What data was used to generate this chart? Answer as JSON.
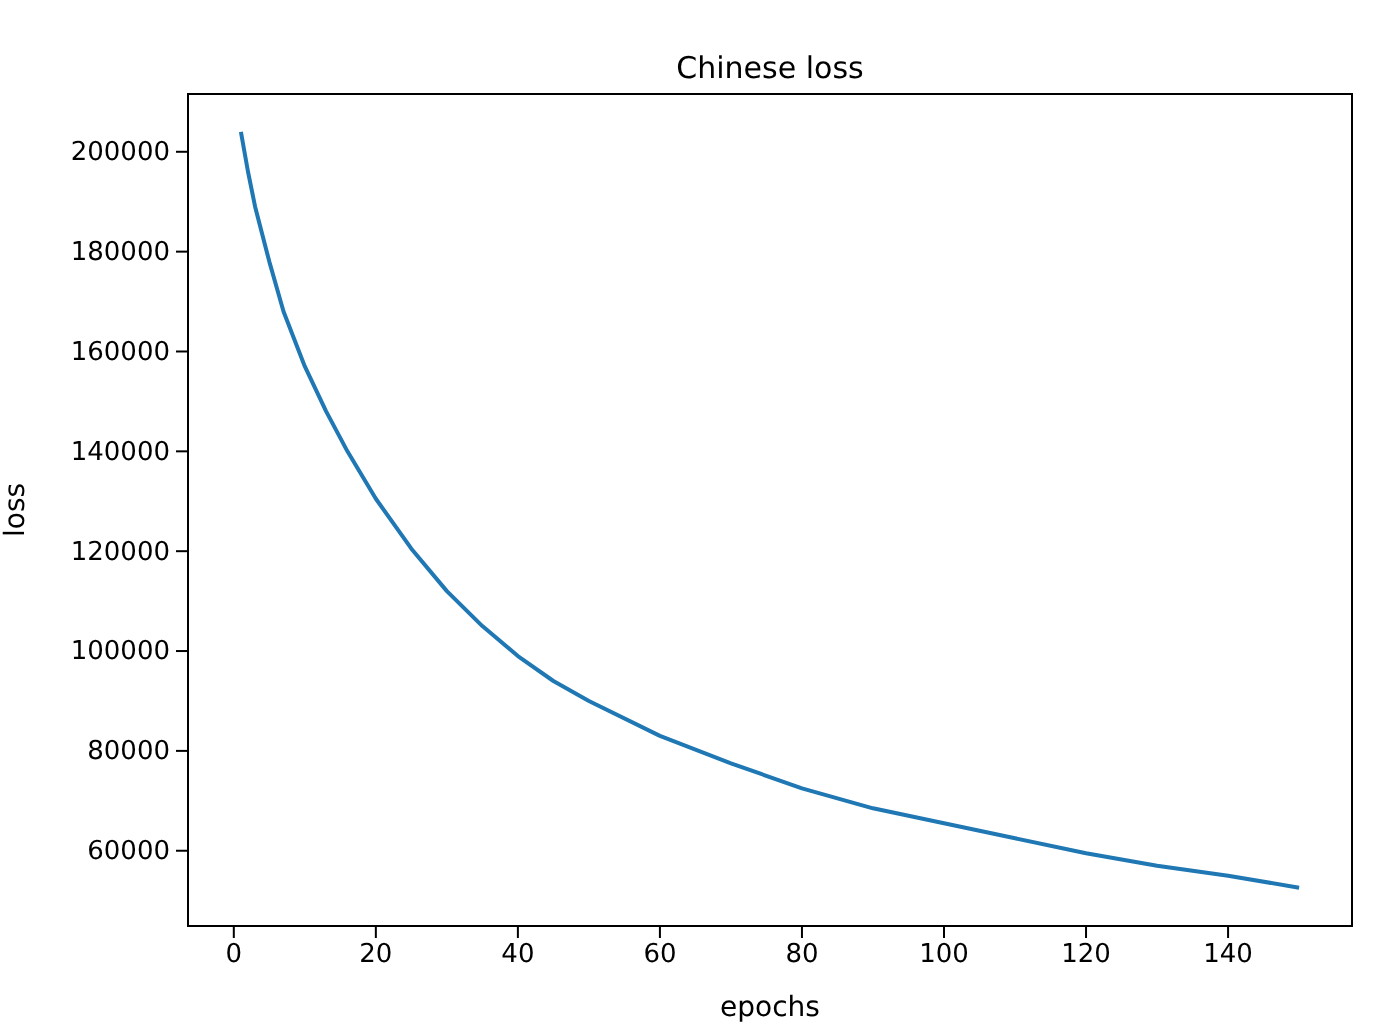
{
  "chart_data": {
    "type": "line",
    "title": "Chinese loss",
    "xlabel": "epochs",
    "ylabel": "loss",
    "x": [
      1,
      2,
      3,
      5,
      7,
      10,
      13,
      16,
      20,
      25,
      30,
      35,
      40,
      45,
      50,
      60,
      70,
      80,
      90,
      100,
      110,
      120,
      130,
      140,
      150
    ],
    "series": [
      {
        "color": "#1f77b4",
        "values": [
          204000,
          196000,
          189000,
          178000,
          168000,
          157000,
          148000,
          140000,
          130500,
          120500,
          112000,
          105000,
          99000,
          94000,
          90000,
          83000,
          77500,
          72500,
          68500,
          65500,
          62500,
          59500,
          57000,
          55000,
          52600
        ]
      }
    ],
    "xlim": [
      -6.45,
      157.45
    ],
    "ylim": [
      44925,
      211575
    ],
    "xticks": [
      0,
      20,
      40,
      60,
      80,
      100,
      120,
      140
    ],
    "yticks": [
      60000,
      80000,
      100000,
      120000,
      140000,
      160000,
      180000,
      200000
    ],
    "grid": false,
    "marker": "none",
    "line_style": "solid"
  }
}
